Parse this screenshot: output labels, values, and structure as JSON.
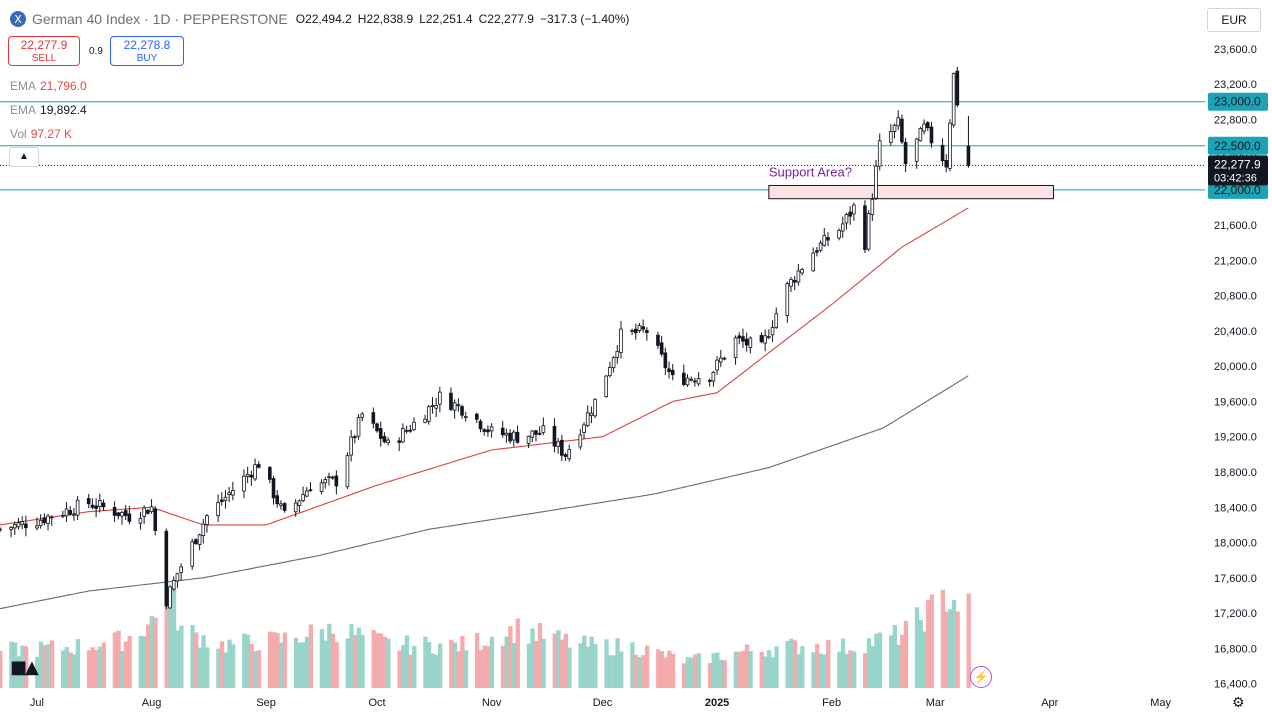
{
  "header": {
    "title": "German 40 Index · 1D · PEPPERSTONE",
    "logo_glyph": "X",
    "open_k": "O",
    "open": "22,494.2",
    "high_k": "H",
    "high": "22,838.9",
    "low_k": "L",
    "low": "22,251.4",
    "close_k": "C",
    "close": "22,277.9",
    "change": "−317.3 (−1.40%)",
    "currency": "EUR"
  },
  "trade": {
    "sell_price": "22,277.9",
    "sell_label": "SELL",
    "spread": "0.9",
    "buy_price": "22,278.8",
    "buy_label": "BUY"
  },
  "indicators": [
    {
      "name": "EMA",
      "value": "21,796.0",
      "color": "#e04c4c"
    },
    {
      "name": "EMA",
      "value": "19,892.4",
      "color": "#131722"
    },
    {
      "name": "Vol",
      "value": "97.27 K",
      "color": "#e04c4c"
    }
  ],
  "colors": {
    "up": "#131722",
    "down": "#131722",
    "ema_fast": "#d64545",
    "ema_slow": "#6b6b6b",
    "hline": "#1ba3b5",
    "vol_up": "#8fd0c6",
    "vol_down": "#f3a3a3",
    "support_fill": "#fde2e4",
    "support_stroke": "#131722",
    "annotation": "#7b1fa2",
    "price_label_bg": "#131722"
  },
  "chart_data": {
    "type": "candlestick",
    "y_axis": {
      "ticks": [
        23600,
        23200,
        22800,
        22400,
        22000,
        21600,
        21200,
        20800,
        20400,
        20000,
        19600,
        19200,
        18800,
        18400,
        18000,
        17600,
        17200,
        16800,
        16400
      ],
      "ylim": [
        16350,
        23700
      ]
    },
    "x_axis": {
      "labels": [
        "Jul",
        "Aug",
        "Sep",
        "Oct",
        "Nov",
        "Dec",
        "2025",
        "Feb",
        "Mar",
        "Apr",
        "May"
      ],
      "label_dates": [
        "2024-07-01",
        "2024-08-01",
        "2024-09-01",
        "2024-10-01",
        "2024-11-01",
        "2024-12-01",
        "2025-01-01",
        "2025-02-01",
        "2025-03-01",
        "2025-04-01",
        "2025-05-01"
      ],
      "xlim": [
        "2024-06-21",
        "2025-05-13"
      ]
    },
    "horizontal_lines": [
      23000,
      22500,
      22000
    ],
    "price_labels": [
      {
        "value": 23000,
        "text": "23,000.0"
      },
      {
        "value": 22500,
        "text": "22,500.0"
      },
      {
        "value": 22000,
        "text": "22,000.0"
      }
    ],
    "last_price": {
      "value": 22277.9,
      "text": "22,277.9",
      "countdown": "03:42:36"
    },
    "support_zone": {
      "label": "Support Area?",
      "low": 21900,
      "high": 22050,
      "start": "2025-01-15",
      "end": "2025-04-02"
    },
    "close_anchors": [
      [
        "2024-06-21",
        18150
      ],
      [
        "2024-07-01",
        18250
      ],
      [
        "2024-07-15",
        18450
      ],
      [
        "2024-07-26",
        18300
      ],
      [
        "2024-08-01",
        18400
      ],
      [
        "2024-08-05",
        17350
      ],
      [
        "2024-08-08",
        17650
      ],
      [
        "2024-08-16",
        18300
      ],
      [
        "2024-08-30",
        18900
      ],
      [
        "2024-09-06",
        18300
      ],
      [
        "2024-09-13",
        18650
      ],
      [
        "2024-09-20",
        18700
      ],
      [
        "2024-09-27",
        19450
      ],
      [
        "2024-10-04",
        19100
      ],
      [
        "2024-10-11",
        19350
      ],
      [
        "2024-10-18",
        19650
      ],
      [
        "2024-10-25",
        19500
      ],
      [
        "2024-11-01",
        19250
      ],
      [
        "2024-11-08",
        19200
      ],
      [
        "2024-11-15",
        19250
      ],
      [
        "2024-11-21",
        19000
      ],
      [
        "2024-11-29",
        19600
      ],
      [
        "2024-12-06",
        20350
      ],
      [
        "2024-12-13",
        20400
      ],
      [
        "2024-12-20",
        19850
      ],
      [
        "2024-12-30",
        19900
      ],
      [
        "2025-01-06",
        20300
      ],
      [
        "2025-01-13",
        20200
      ],
      [
        "2025-01-20",
        20900
      ],
      [
        "2025-01-27",
        21300
      ],
      [
        "2025-02-03",
        21550
      ],
      [
        "2025-02-07",
        21800
      ],
      [
        "2025-02-10",
        21400
      ],
      [
        "2025-02-14",
        22500
      ],
      [
        "2025-02-19",
        22750
      ],
      [
        "2025-02-21",
        22300
      ],
      [
        "2025-02-26",
        22700
      ],
      [
        "2025-03-04",
        22300
      ],
      [
        "2025-03-06",
        23300
      ],
      [
        "2025-03-07",
        23000
      ],
      [
        "2025-03-10",
        22278
      ]
    ],
    "ema_fast_anchors": [
      [
        "2024-06-21",
        18200
      ],
      [
        "2024-07-15",
        18350
      ],
      [
        "2024-08-01",
        18400
      ],
      [
        "2024-08-15",
        18200
      ],
      [
        "2024-09-01",
        18200
      ],
      [
        "2024-10-01",
        18650
      ],
      [
        "2024-11-01",
        19050
      ],
      [
        "2024-12-01",
        19200
      ],
      [
        "2024-12-20",
        19600
      ],
      [
        "2025-01-01",
        19700
      ],
      [
        "2025-02-01",
        20700
      ],
      [
        "2025-02-20",
        21350
      ],
      [
        "2025-03-10",
        21796
      ]
    ],
    "ema_slow_anchors": [
      [
        "2024-06-21",
        17250
      ],
      [
        "2024-07-15",
        17450
      ],
      [
        "2024-08-15",
        17600
      ],
      [
        "2024-09-15",
        17850
      ],
      [
        "2024-10-15",
        18150
      ],
      [
        "2024-11-15",
        18350
      ],
      [
        "2024-12-15",
        18550
      ],
      [
        "2025-01-15",
        18850
      ],
      [
        "2025-02-15",
        19300
      ],
      [
        "2025-03-10",
        19892
      ]
    ],
    "volume_anchors": [
      [
        "2024-06-21",
        0.35
      ],
      [
        "2024-07-10",
        0.38
      ],
      [
        "2024-07-25",
        0.45
      ],
      [
        "2024-08-02",
        0.65
      ],
      [
        "2024-08-05",
        1.0
      ],
      [
        "2024-08-09",
        0.55
      ],
      [
        "2024-08-20",
        0.4
      ],
      [
        "2024-09-05",
        0.45
      ],
      [
        "2024-09-20",
        0.55
      ],
      [
        "2024-10-05",
        0.4
      ],
      [
        "2024-10-25",
        0.4
      ],
      [
        "2024-11-08",
        0.55
      ],
      [
        "2024-11-25",
        0.4
      ],
      [
        "2024-12-10",
        0.38
      ],
      [
        "2024-12-24",
        0.25
      ],
      [
        "2025-01-10",
        0.35
      ],
      [
        "2025-01-25",
        0.4
      ],
      [
        "2025-02-05",
        0.38
      ],
      [
        "2025-02-20",
        0.5
      ],
      [
        "2025-03-04",
        0.85
      ],
      [
        "2025-03-10",
        0.75
      ]
    ]
  }
}
